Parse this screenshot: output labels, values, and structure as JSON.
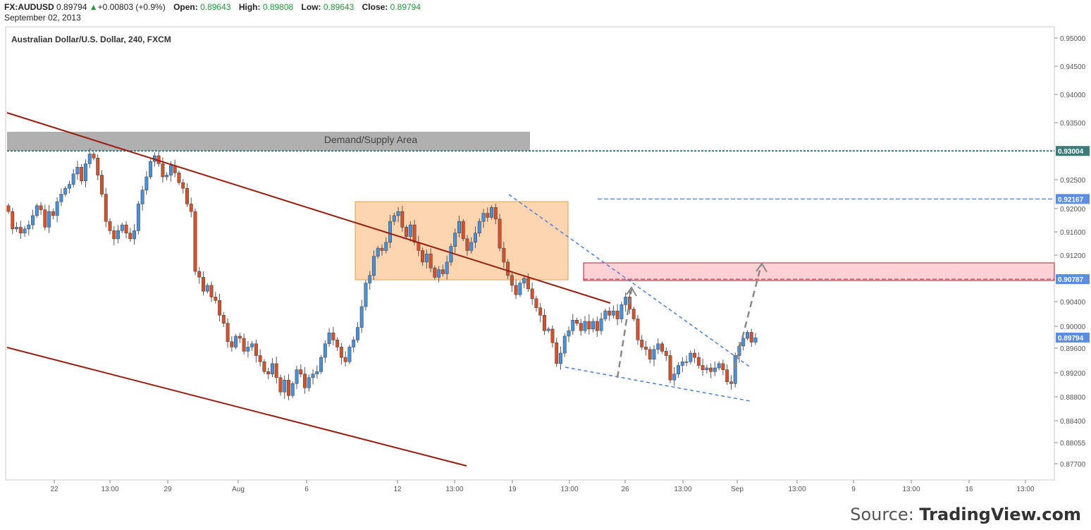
{
  "header": {
    "symbol": "FX:AUDUSD",
    "last": "0.89794",
    "change_arrow": "▲",
    "change": "+0.00803 (+0.9%)",
    "open_label": "Open:",
    "open": "0.89643",
    "high_label": "High:",
    "high": "0.89808",
    "low_label": "Low:",
    "low": "0.89643",
    "close_label": "Close:",
    "close": "0.89794",
    "date": "September 02, 2013"
  },
  "source": {
    "prefix": "Source: ",
    "brand": "TradingView.com"
  },
  "chart_data": {
    "type": "candlestick",
    "title": "Australian Dollar/U.S. Dollar, 240, FXCM",
    "y_ticks": [
      "0.95000",
      "0.94500",
      "0.94000",
      "0.93500",
      "0.92500",
      "0.92000",
      "0.91600",
      "0.91200",
      "0.90400",
      "0.90000",
      "0.89600",
      "0.89200",
      "0.88800",
      "0.88400",
      "0.88055",
      "0.87700"
    ],
    "x_ticks": [
      "22",
      "13:00",
      "29",
      "Aug",
      "6",
      "12",
      "13:00",
      "19",
      "13:00",
      "26",
      "13:00",
      "Sep",
      "13:00",
      "9",
      "13:00",
      "16",
      "13:00"
    ],
    "price_tags": [
      {
        "label": "0.93004",
        "color": "#3d7a7a"
      },
      {
        "label": "0.92167",
        "color": "#5b8ee0"
      },
      {
        "label": "0.90787",
        "color": "#5b8ee0"
      },
      {
        "label": "0.89794",
        "color": "#5b8ee0"
      }
    ],
    "zones": [
      {
        "label": "Demand/Supply Area",
        "color": "#b0b0b0"
      },
      {
        "label": "",
        "color": "#fcd5b0"
      },
      {
        "label": "",
        "color": "#ffd0d4"
      }
    ],
    "closes": [
      0.9195,
      0.9165,
      0.9168,
      0.9158,
      0.9165,
      0.9172,
      0.9188,
      0.9205,
      0.9198,
      0.9168,
      0.9195,
      0.9188,
      0.9212,
      0.9225,
      0.9235,
      0.9242,
      0.926,
      0.9272,
      0.9248,
      0.9278,
      0.9295,
      0.9288,
      0.9258,
      0.9225,
      0.9178,
      0.9162,
      0.9148,
      0.9162,
      0.9172,
      0.9158,
      0.9148,
      0.9162,
      0.9208,
      0.9232,
      0.9255,
      0.9282,
      0.9292,
      0.9278,
      0.9255,
      0.9258,
      0.9275,
      0.9262,
      0.9245,
      0.9235,
      0.9208,
      0.9195,
      0.9092,
      0.9082,
      0.9058,
      0.9068,
      0.9048,
      0.9042,
      0.9018,
      0.9005,
      0.8972,
      0.8962,
      0.8982,
      0.8978,
      0.8955,
      0.8962,
      0.8968,
      0.8948,
      0.8938,
      0.8922,
      0.8918,
      0.8935,
      0.8912,
      0.8888,
      0.8908,
      0.8882,
      0.8902,
      0.8925,
      0.8918,
      0.8895,
      0.8912,
      0.8918,
      0.8922,
      0.8945,
      0.8968,
      0.8988,
      0.8975,
      0.8962,
      0.8945,
      0.8938,
      0.8962,
      0.8975,
      0.8998,
      0.9032,
      0.9072,
      0.9085,
      0.9118,
      0.9132,
      0.9128,
      0.9142,
      0.9178,
      0.9188,
      0.9195,
      0.9168,
      0.9152,
      0.9172,
      0.9142,
      0.9128,
      0.9108,
      0.9122,
      0.9098,
      0.9082,
      0.9095,
      0.9088,
      0.9108,
      0.9135,
      0.9158,
      0.9178,
      0.9148,
      0.9128,
      0.9142,
      0.9158,
      0.9178,
      0.9192,
      0.9185,
      0.9202,
      0.9182,
      0.9132,
      0.9108,
      0.9085,
      0.9068,
      0.9052,
      0.9072,
      0.908,
      0.9062,
      0.9045,
      0.903,
      0.9018,
      0.8992,
      0.8995,
      0.897,
      0.8935,
      0.8952,
      0.8982,
      0.8992,
      0.901,
      0.9005,
      0.8992,
      0.9008,
      0.8995,
      0.9008,
      0.8992,
      0.9012,
      0.9025,
      0.9018,
      0.9025,
      0.9012,
      0.9035,
      0.9048,
      0.9028,
      0.9012,
      0.8975,
      0.8962,
      0.8958,
      0.8942,
      0.8958,
      0.8968,
      0.8955,
      0.8948,
      0.8908,
      0.8918,
      0.8932,
      0.8938,
      0.8938,
      0.8952,
      0.8945,
      0.8932,
      0.8925,
      0.8928,
      0.8922,
      0.8928,
      0.8935,
      0.8925,
      0.8905,
      0.8902,
      0.8948,
      0.8964,
      0.8978,
      0.8989,
      0.8971,
      0.8979
    ]
  }
}
